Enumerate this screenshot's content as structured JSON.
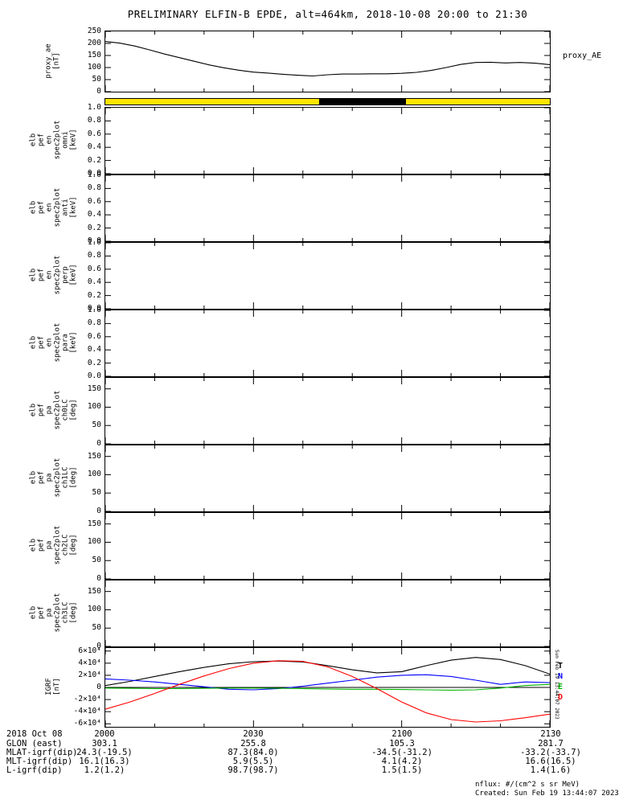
{
  "title": "PRELIMINARY ELFIN-B EPDE, alt=464km, 2018-10-08 20:00 to 21:30",
  "footer": {
    "nflux": "nflux: #/(cm^2 s sr MeV)",
    "created": "Created: Sun Feb 19 13:44:07 2023",
    "side_timestamp": "Sun Feb 19 13:44:07 2023"
  },
  "xaxis": {
    "date_label": "2018 Oct 08",
    "tick_labels": [
      "2000",
      "2030",
      "2100",
      "2130"
    ],
    "tick_minutes": [
      0,
      30,
      60,
      90
    ],
    "minor_step": 10,
    "major_step": 30,
    "range_minutes": [
      0,
      90
    ]
  },
  "annotation_rows": [
    {
      "label": "GLON (east)",
      "values": [
        "303.1",
        "255.8",
        "105.3",
        "281.7"
      ]
    },
    {
      "label": "MLAT-igrf(dip)",
      "values": [
        "24.3(-19.5)",
        "87.3(84.0)",
        "-34.5(-31.2)",
        "-33.2(-33.7)"
      ]
    },
    {
      "label": "MLT-igrf(dip)",
      "values": [
        "16.1(16.3)",
        "5.9(5.5)",
        "4.1(4.2)",
        "16.6(16.5)"
      ]
    },
    {
      "label": "L-igrf(dip)",
      "values": [
        "1.2(1.2)",
        "98.7(98.7)",
        "1.5(1.5)",
        "1.4(1.6)"
      ]
    }
  ],
  "time_bar": {
    "color": "#ffe400",
    "segments": [
      {
        "from_frac": 0.481,
        "to_frac": 0.676,
        "color": "#000000"
      }
    ]
  },
  "chart_data": [
    {
      "id": "proxy",
      "type": "line",
      "ylabel_lines": [
        "proxy_ae",
        "[nT]"
      ],
      "right_label": "proxy_AE",
      "ylim": [
        0,
        250
      ],
      "yticks": [
        {
          "v": 0,
          "l": "0"
        },
        {
          "v": 50,
          "l": "50"
        },
        {
          "v": 100,
          "l": "100"
        },
        {
          "v": 150,
          "l": "150"
        },
        {
          "v": 200,
          "l": "200"
        },
        {
          "v": 250,
          "l": "250"
        }
      ],
      "series": [
        {
          "name": "proxy_AE",
          "color": "#000000",
          "x": [
            0,
            3,
            6,
            9,
            12,
            15,
            18,
            21,
            24,
            27,
            30,
            33,
            36,
            39,
            42,
            45,
            48,
            51,
            54,
            57,
            60,
            63,
            66,
            69,
            72,
            75,
            78,
            81,
            84,
            87,
            90
          ],
          "y": [
            208,
            201,
            189,
            173,
            156,
            141,
            126,
            111,
            99,
            89,
            81,
            77,
            72,
            68,
            65,
            70,
            73,
            73,
            74,
            74,
            76,
            80,
            88,
            100,
            113,
            121,
            122,
            119,
            121,
            118,
            112
          ]
        }
      ]
    },
    {
      "id": "en_omni",
      "type": "spectrogram-empty",
      "ylabel_lines": [
        "elb",
        "pef",
        "en",
        "spec2plot",
        "omni",
        "[keV]"
      ],
      "ylim": [
        0,
        1
      ],
      "yticks": [
        {
          "v": 0,
          "l": "0.0"
        },
        {
          "v": 0.2,
          "l": "0.2"
        },
        {
          "v": 0.4,
          "l": "0.4"
        },
        {
          "v": 0.6,
          "l": "0.6"
        },
        {
          "v": 0.8,
          "l": "0.8"
        },
        {
          "v": 1.0,
          "l": "1.0"
        }
      ]
    },
    {
      "id": "en_anti",
      "type": "spectrogram-empty",
      "ylabel_lines": [
        "elb",
        "pef",
        "en",
        "spec2plot",
        "anti",
        "[keV]"
      ],
      "ylim": [
        0,
        1
      ],
      "yticks": [
        {
          "v": 0,
          "l": "0.0"
        },
        {
          "v": 0.2,
          "l": "0.2"
        },
        {
          "v": 0.4,
          "l": "0.4"
        },
        {
          "v": 0.6,
          "l": "0.6"
        },
        {
          "v": 0.8,
          "l": "0.8"
        },
        {
          "v": 1.0,
          "l": "1.0"
        }
      ]
    },
    {
      "id": "en_perp",
      "type": "spectrogram-empty",
      "ylabel_lines": [
        "elb",
        "pef",
        "en",
        "spec2plot",
        "perp",
        "[keV]"
      ],
      "ylim": [
        0,
        1
      ],
      "yticks": [
        {
          "v": 0,
          "l": "0.0"
        },
        {
          "v": 0.2,
          "l": "0.2"
        },
        {
          "v": 0.4,
          "l": "0.4"
        },
        {
          "v": 0.6,
          "l": "0.6"
        },
        {
          "v": 0.8,
          "l": "0.8"
        },
        {
          "v": 1.0,
          "l": "1.0"
        }
      ]
    },
    {
      "id": "en_para",
      "type": "spectrogram-empty",
      "ylabel_lines": [
        "elb",
        "pef",
        "en",
        "spec2plot",
        "para",
        "[keV]"
      ],
      "ylim": [
        0,
        1
      ],
      "yticks": [
        {
          "v": 0,
          "l": "0.0"
        },
        {
          "v": 0.2,
          "l": "0.2"
        },
        {
          "v": 0.4,
          "l": "0.4"
        },
        {
          "v": 0.6,
          "l": "0.6"
        },
        {
          "v": 0.8,
          "l": "0.8"
        },
        {
          "v": 1.0,
          "l": "1.0"
        }
      ]
    },
    {
      "id": "pa_ch0lc",
      "type": "spectrogram-empty",
      "ylabel_lines": [
        "elb",
        "pef",
        "pa",
        "spec2plot",
        "ch0LC",
        "[deg]"
      ],
      "ylim": [
        0,
        180
      ],
      "yticks": [
        {
          "v": 0,
          "l": "0"
        },
        {
          "v": 50,
          "l": "50"
        },
        {
          "v": 100,
          "l": "100"
        },
        {
          "v": 150,
          "l": "150"
        }
      ]
    },
    {
      "id": "pa_ch1lc",
      "type": "spectrogram-empty",
      "ylabel_lines": [
        "elb",
        "pef",
        "pa",
        "spec2plot",
        "ch1LC",
        "[deg]"
      ],
      "ylim": [
        0,
        180
      ],
      "yticks": [
        {
          "v": 0,
          "l": "0"
        },
        {
          "v": 50,
          "l": "50"
        },
        {
          "v": 100,
          "l": "100"
        },
        {
          "v": 150,
          "l": "150"
        }
      ]
    },
    {
      "id": "pa_ch2lc",
      "type": "spectrogram-empty",
      "ylabel_lines": [
        "elb",
        "pef",
        "pa",
        "spec2plot",
        "ch2LC",
        "[deg]"
      ],
      "ylim": [
        0,
        180
      ],
      "yticks": [
        {
          "v": 0,
          "l": "0"
        },
        {
          "v": 50,
          "l": "50"
        },
        {
          "v": 100,
          "l": "100"
        },
        {
          "v": 150,
          "l": "150"
        }
      ]
    },
    {
      "id": "pa_ch3lc",
      "type": "spectrogram-empty",
      "ylabel_lines": [
        "elb",
        "pef",
        "pa",
        "spec2plot",
        "ch3LC",
        "[deg]"
      ],
      "ylim": [
        0,
        180
      ],
      "yticks": [
        {
          "v": 0,
          "l": "0"
        },
        {
          "v": 50,
          "l": "50"
        },
        {
          "v": 100,
          "l": "100"
        },
        {
          "v": 150,
          "l": "150"
        }
      ]
    },
    {
      "id": "igrf",
      "type": "line",
      "ylabel_lines": [
        "IGRF",
        "[nT]"
      ],
      "ylim": [
        -65000,
        65000
      ],
      "zero_line": true,
      "yticks": [
        {
          "v": 60000,
          "l": "6×10⁴"
        },
        {
          "v": 40000,
          "l": "4×10⁴"
        },
        {
          "v": 20000,
          "l": "2×10⁴"
        },
        {
          "v": 0,
          "l": "0"
        },
        {
          "v": -20000,
          "l": "-2×10⁴"
        },
        {
          "v": -40000,
          "l": "-4×10⁴"
        },
        {
          "v": -60000,
          "l": "-6×10⁴"
        }
      ],
      "right_series_labels": [
        {
          "t": "T",
          "c": "#000000"
        },
        {
          "t": "N",
          "c": "#0000ff"
        },
        {
          "t": "E",
          "c": "#00b400"
        },
        {
          "t": "D",
          "c": "#ff0000"
        }
      ],
      "series": [
        {
          "name": "T",
          "color": "#000000",
          "x": [
            0,
            5,
            10,
            15,
            20,
            25,
            30,
            35,
            40,
            45,
            50,
            55,
            60,
            65,
            70,
            75,
            80,
            85,
            90
          ],
          "y": [
            3000,
            10000,
            18000,
            26000,
            33000,
            39000,
            42500,
            43500,
            42000,
            36000,
            29000,
            24000,
            26000,
            36000,
            45000,
            49500,
            46000,
            36000,
            22000
          ]
        },
        {
          "name": "N",
          "color": "#0000ff",
          "x": [
            0,
            5,
            10,
            15,
            20,
            25,
            30,
            35,
            40,
            45,
            50,
            55,
            60,
            65,
            70,
            75,
            80,
            85,
            90
          ],
          "y": [
            14000,
            12000,
            9000,
            5000,
            1000,
            -3000,
            -4000,
            -2000,
            2000,
            7000,
            12000,
            17000,
            20000,
            21000,
            18000,
            12000,
            5000,
            9000,
            8000
          ]
        },
        {
          "name": "E",
          "color": "#00b400",
          "x": [
            0,
            5,
            10,
            15,
            20,
            25,
            30,
            35,
            40,
            45,
            50,
            55,
            60,
            65,
            70,
            75,
            80,
            85,
            90
          ],
          "y": [
            -1000,
            -1500,
            -2000,
            -2000,
            -1500,
            -1000,
            -1000,
            -1500,
            -2000,
            -2500,
            -3000,
            -3000,
            -3500,
            -4000,
            -4500,
            -4000,
            -1000,
            3000,
            5000
          ]
        },
        {
          "name": "D",
          "color": "#ff0000",
          "x": [
            0,
            5,
            10,
            15,
            20,
            25,
            30,
            35,
            40,
            45,
            50,
            55,
            60,
            65,
            70,
            75,
            80,
            85,
            90
          ],
          "y": [
            -36000,
            -24000,
            -10000,
            5000,
            19000,
            31000,
            40000,
            44000,
            43000,
            34000,
            18000,
            -2000,
            -24000,
            -42000,
            -53000,
            -57000,
            -55000,
            -50000,
            -44000
          ]
        }
      ]
    }
  ]
}
